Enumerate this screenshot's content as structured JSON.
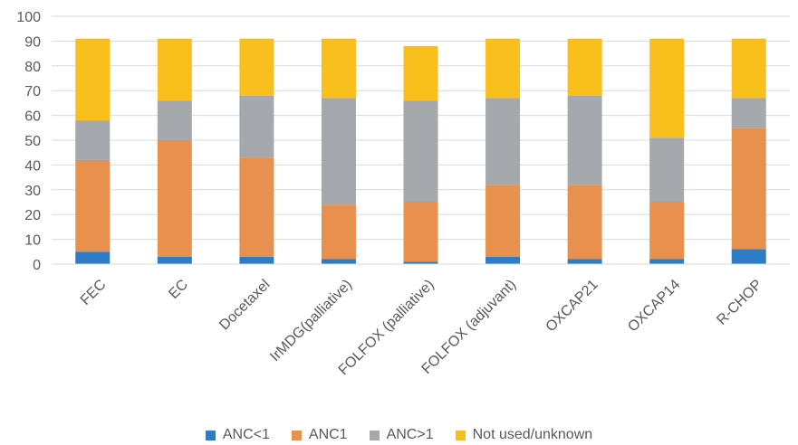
{
  "chart_data": {
    "type": "bar",
    "stacked": true,
    "categories": [
      "FEC",
      "EC",
      "Docetaxel",
      "IrMDG(palliative)",
      "FOLFOX (palliative)",
      "FOLFOX (adjuvant)",
      "OXCAP21",
      "OXCAP14",
      "R-CHOP"
    ],
    "series": [
      {
        "name": "ANC<1",
        "color": "#2e7dc4",
        "values": [
          5,
          3,
          3,
          2,
          1,
          3,
          2,
          2,
          6
        ]
      },
      {
        "name": "ANC1",
        "color": "#e8914e",
        "values": [
          37,
          47,
          40,
          22,
          24,
          29,
          30,
          23,
          49
        ]
      },
      {
        "name": "ANC>1",
        "color": "#a5a8ad",
        "values": [
          16,
          16,
          25,
          43,
          41,
          35,
          36,
          26,
          12
        ]
      },
      {
        "name": "Not used/unknown",
        "color": "#f9bf1c",
        "values": [
          33,
          25,
          23,
          24,
          22,
          24,
          23,
          40,
          24
        ]
      }
    ],
    "ylim": [
      0,
      100
    ],
    "yticks": [
      "0",
      "10",
      "20",
      "30",
      "40",
      "50",
      "60",
      "70",
      "80",
      "90",
      "100"
    ],
    "grid": true,
    "legend_position": "bottom",
    "title": "",
    "xlabel": "",
    "ylabel": ""
  }
}
